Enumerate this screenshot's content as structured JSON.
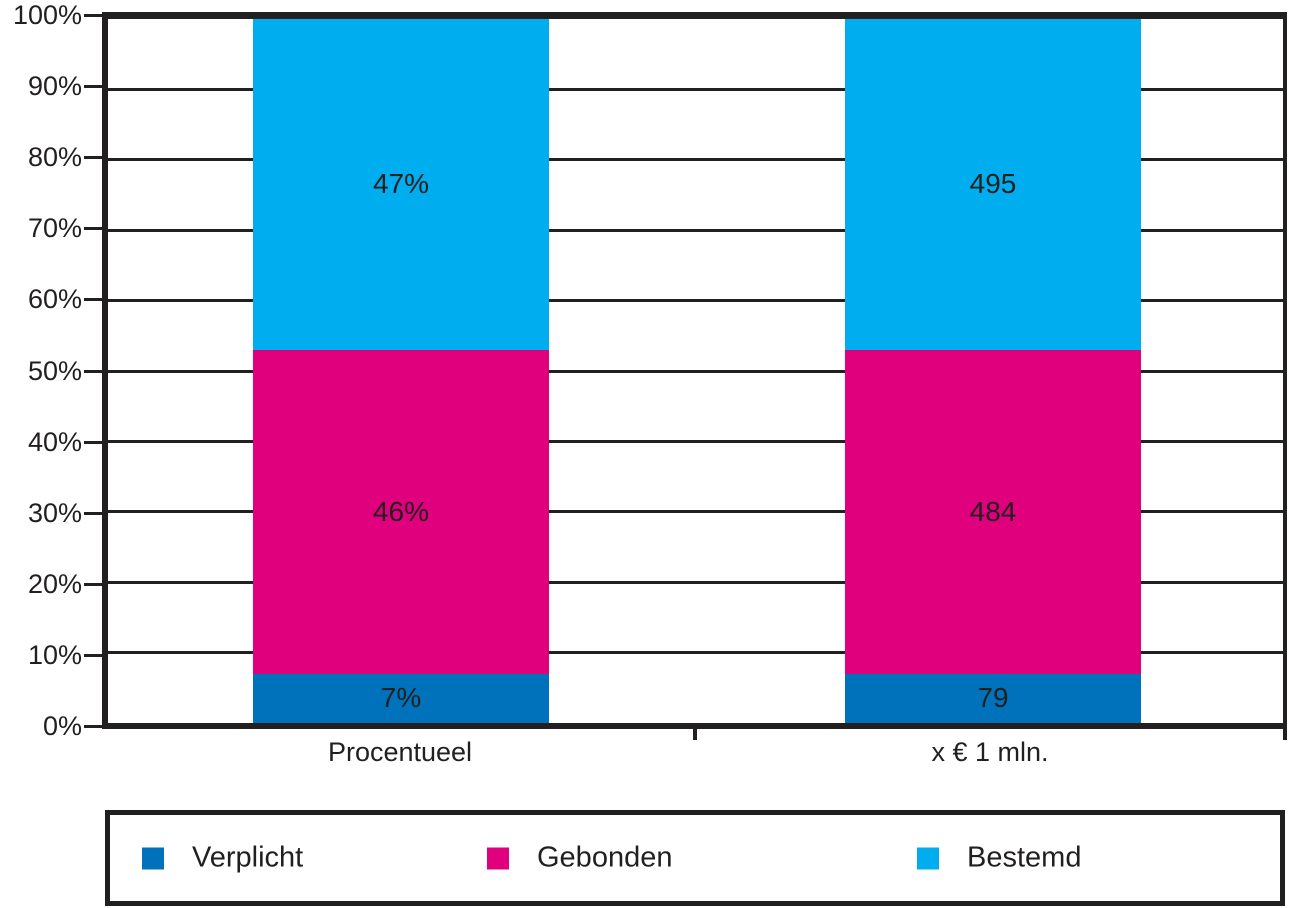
{
  "chart_data": {
    "type": "bar",
    "stacked": true,
    "title": "",
    "xlabel": "",
    "ylabel": "",
    "categories": [
      "Procentueel",
      "x € 1 mln."
    ],
    "series": [
      {
        "name": "Verplicht",
        "color": "#0072BC",
        "values": [
          7,
          79
        ],
        "display_labels": [
          "7%",
          "79"
        ]
      },
      {
        "name": "Gebonden",
        "color": "#E0007E",
        "values": [
          46,
          484
        ],
        "display_labels": [
          "46%",
          "484"
        ]
      },
      {
        "name": "Bestemd",
        "color": "#00AEEF",
        "values": [
          47,
          495
        ],
        "display_labels": [
          "47%",
          "495"
        ]
      }
    ],
    "bars": [
      {
        "category": "Procentueel",
        "segment_labels": [
          "7%",
          "46%",
          "47%"
        ],
        "segment_heights_pct": [
          7,
          46,
          47
        ]
      },
      {
        "category": "x € 1 mln.",
        "segment_labels": [
          "79",
          "484",
          "495"
        ],
        "segment_heights_pct": [
          7,
          46,
          47
        ]
      }
    ],
    "yticks": [
      "100%",
      "90%",
      "80%",
      "70%",
      "60%",
      "50%",
      "40%",
      "30%",
      "20%",
      "10%",
      "0%"
    ],
    "ylim": [
      0,
      100
    ],
    "grid": true,
    "legend_position": "bottom",
    "legend_entries": [
      "Verplicht",
      "Gebonden",
      "Bestemd"
    ]
  },
  "colors": {
    "axis_black": "#221F20",
    "background": "#FFFFFF",
    "verplicht_blue": "#0072BC",
    "gebonden_magenta": "#E0007E",
    "bestemd_cyan": "#00AEEF"
  }
}
